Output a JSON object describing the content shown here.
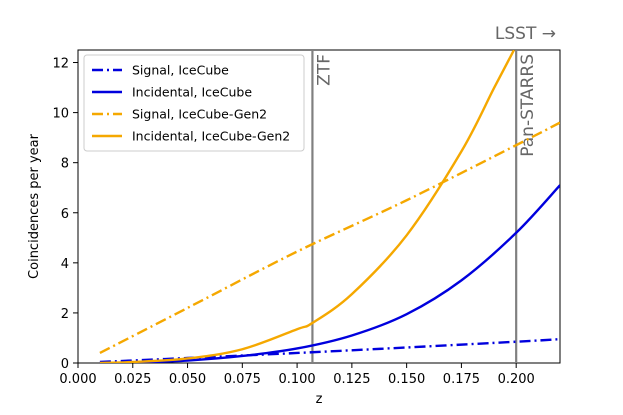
{
  "chart_data": {
    "type": "line",
    "xlabel": "z",
    "ylabel": "Coincidences per year",
    "xlim": [
      0.0,
      0.22
    ],
    "ylim": [
      0,
      12.5
    ],
    "xticks": [
      0.0,
      0.025,
      0.05,
      0.075,
      0.1,
      0.125,
      0.15,
      0.175,
      0.2
    ],
    "xtick_labels": [
      "0.000",
      "0.025",
      "0.050",
      "0.075",
      "0.100",
      "0.125",
      "0.150",
      "0.175",
      "0.200"
    ],
    "yticks": [
      0,
      2,
      4,
      6,
      8,
      10,
      12
    ],
    "ytick_labels": [
      "0",
      "2",
      "4",
      "6",
      "8",
      "10",
      "12"
    ],
    "grid": false,
    "legend_position": "top-left",
    "series": [
      {
        "name": "Signal, IceCube",
        "color": "#0000dd",
        "style": "dashdot",
        "x": [
          0.01,
          0.05,
          0.1,
          0.15,
          0.2,
          0.22
        ],
        "y": [
          0.04,
          0.2,
          0.4,
          0.62,
          0.85,
          0.95
        ]
      },
      {
        "name": "Incidental, IceCube",
        "color": "#0000dd",
        "style": "solid",
        "x": [
          0.01,
          0.025,
          0.05,
          0.075,
          0.1,
          0.125,
          0.15,
          0.175,
          0.2,
          0.22
        ],
        "y": [
          0.0,
          0.02,
          0.1,
          0.28,
          0.58,
          1.1,
          1.95,
          3.3,
          5.2,
          7.1
        ]
      },
      {
        "name": "Signal, IceCube-Gen2",
        "color": "#f5a800",
        "style": "dashdot",
        "x": [
          0.01,
          0.05,
          0.1,
          0.15,
          0.2,
          0.22
        ],
        "y": [
          0.4,
          2.2,
          4.45,
          6.5,
          8.7,
          9.6
        ]
      },
      {
        "name": "Incidental, IceCube-Gen2",
        "color": "#f5a800",
        "style": "solid",
        "x": [
          0.01,
          0.025,
          0.05,
          0.075,
          0.1,
          0.107,
          0.125,
          0.15,
          0.175,
          0.19,
          0.199
        ],
        "y": [
          0.0,
          0.04,
          0.18,
          0.55,
          1.35,
          1.6,
          2.75,
          5.1,
          8.45,
          11.0,
          12.5
        ]
      }
    ],
    "vlines": [
      {
        "x": 0.107,
        "label": "ZTF",
        "color": "#808080"
      },
      {
        "x": 0.2,
        "label": "Pan-STARRS",
        "color": "#808080"
      }
    ],
    "annotations": [
      {
        "text": "LSST →",
        "position": "top-right"
      }
    ]
  }
}
